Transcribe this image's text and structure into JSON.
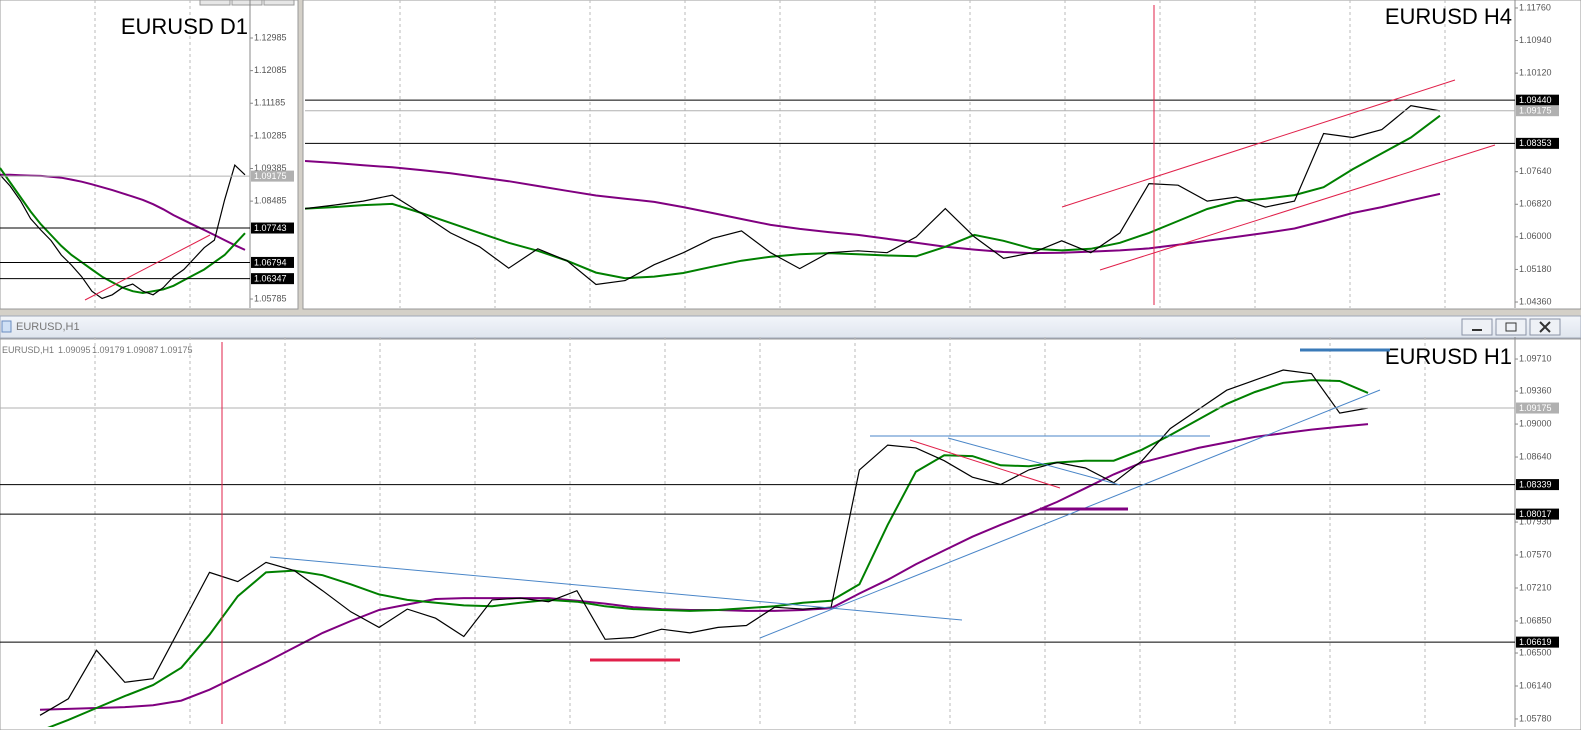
{
  "h1_window": {
    "title": "EURUSD,H1",
    "symbol": "EURUSD,H1",
    "ohlc": [
      1.09095,
      1.09179,
      1.09087,
      1.09175
    ]
  },
  "chart_data": [
    {
      "type": "line",
      "title": "EURUSD D1",
      "ylim": [
        1.0562,
        1.13895
      ],
      "yticks": [
        1.12985,
        1.12085,
        1.11185,
        1.10285,
        1.09385,
        1.08485,
        1.05785
      ],
      "hlines": [
        {
          "value": 1.09175,
          "color": "#b0b0b0"
        },
        {
          "value": 1.07743,
          "color": "#000000"
        },
        {
          "value": 1.06794,
          "color": "#000000"
        },
        {
          "value": 1.06347,
          "color": "#000000"
        }
      ],
      "series": [
        {
          "color": "#800080",
          "values": [
            1.0921,
            1.0921,
            1.092,
            1.0919,
            1.0918,
            1.0916,
            1.0913,
            1.0908,
            1.0902,
            1.0895,
            1.0887,
            1.0879,
            1.087,
            1.0861,
            1.0852,
            1.084,
            1.0826,
            1.081,
            1.0796,
            1.0782,
            1.0769,
            1.0755,
            1.0741,
            1.0727,
            1.0714
          ]
        },
        {
          "color": "#008000",
          "values": [
            1.094,
            1.09,
            1.086,
            1.082,
            1.0785,
            1.0755,
            1.0725,
            1.07,
            1.068,
            1.066,
            1.064,
            1.0625,
            1.061,
            1.06,
            1.0595,
            1.06,
            1.0605,
            1.0615,
            1.063,
            1.0645,
            1.066,
            1.068,
            1.07,
            1.073,
            1.076
          ]
        },
        {
          "color": "#000000",
          "values": [
            1.0921,
            1.089,
            1.085,
            1.08,
            1.0769,
            1.074,
            1.07,
            1.0672,
            1.064,
            1.06,
            1.058,
            1.059,
            1.061,
            1.062,
            1.06,
            1.059,
            1.061,
            1.064,
            1.066,
            1.069,
            1.072,
            1.0741,
            1.0852,
            1.0948,
            1.0921
          ]
        }
      ]
    },
    {
      "type": "line",
      "title": "EURUSD H4",
      "ylim": [
        1.04285,
        1.11835
      ],
      "yticks": [
        {
          "value": 1.1176,
          "label": "1.11760"
        },
        {
          "value": 1.1094,
          "label": "1.10940"
        },
        {
          "value": 1.1012,
          "label": "1.10120"
        },
        {
          "value": 1.0764,
          "label": "1.07640"
        },
        {
          "value": 1.0682,
          "label": "1.06820"
        },
        {
          "value": 1.06,
          "label": "1.06000"
        },
        {
          "value": 1.0518,
          "label": "1.05180"
        },
        {
          "value": 1.0436,
          "label": "1.04360"
        }
      ],
      "hlines": [
        {
          "value": 1.0944,
          "label": "1.09440",
          "color": "#000000"
        },
        {
          "value": 1.09175,
          "color": "#b0b0b0"
        },
        {
          "value": 1.08353,
          "color": "#000000"
        }
      ],
      "series": [
        {
          "color": "#800080",
          "values": [
            1.0791,
            1.0786,
            1.078,
            1.0775,
            1.0768,
            1.076,
            1.075,
            1.074,
            1.0728,
            1.0716,
            1.0704,
            1.0696,
            1.0688,
            1.0675,
            1.066,
            1.0645,
            1.063,
            1.062,
            1.0612,
            1.0605,
            1.0595,
            1.0585,
            1.0575,
            1.0568,
            1.0562,
            1.0559,
            1.056,
            1.0563,
            1.0566,
            1.0571,
            1.058,
            1.059,
            1.06,
            1.061,
            1.0621,
            1.064,
            1.066,
            1.0675,
            1.0692,
            1.0708
          ]
        },
        {
          "color": "#008000",
          "values": [
            1.0671,
            1.0675,
            1.068,
            1.0683,
            1.066,
            1.0635,
            1.061,
            1.0585,
            1.0565,
            1.054,
            1.051,
            1.0496,
            1.05,
            1.0509,
            1.0525,
            1.054,
            1.055,
            1.0556,
            1.0559,
            1.0556,
            1.0553,
            1.0551,
            1.0575,
            1.0605,
            1.059,
            1.057,
            1.0566,
            1.057,
            1.0585,
            1.061,
            1.064,
            1.067,
            1.069,
            1.0696,
            1.0705,
            1.0725,
            1.077,
            1.081,
            1.085,
            1.0905
          ]
        },
        {
          "color": "#000000",
          "values": [
            1.0671,
            1.068,
            1.069,
            1.0705,
            1.0659,
            1.061,
            1.0575,
            1.0521,
            1.057,
            1.054,
            1.048,
            1.049,
            1.053,
            1.056,
            1.0596,
            1.0615,
            1.056,
            1.052,
            1.056,
            1.0565,
            1.056,
            1.06,
            1.0671,
            1.06,
            1.0546,
            1.056,
            1.059,
            1.056,
            1.061,
            1.0734,
            1.073,
            1.069,
            1.07,
            1.0675,
            1.069,
            1.086,
            1.085,
            1.087,
            1.093,
            1.0917
          ]
        }
      ]
    },
    {
      "type": "line",
      "title": "EURUSD H1",
      "ylim": [
        1.05725,
        1.09896
      ],
      "yticks": [
        {
          "value": 1.0971,
          "label": "1.09710"
        },
        {
          "value": 1.0936,
          "label": "1.09360"
        },
        {
          "value": 1.09,
          "label": "1.09000"
        },
        {
          "value": 1.0864,
          "label": "1.08640"
        },
        {
          "value": 1.0793,
          "label": "1.07930"
        },
        {
          "value": 1.0757,
          "label": "1.07570"
        },
        {
          "value": 1.0721,
          "label": "1.07210"
        },
        {
          "value": 1.0685,
          "label": "1.06850"
        },
        {
          "value": 1.065,
          "label": "1.06500"
        },
        {
          "value": 1.0614,
          "label": "1.06140"
        },
        {
          "value": 1.0578,
          "label": "1.05780"
        }
      ],
      "hlines": [
        {
          "value": 1.09175,
          "color": "#b0b0b0"
        },
        {
          "value": 1.08339,
          "color": "#000000"
        },
        {
          "value": 1.08017,
          "color": "#000000"
        },
        {
          "value": 1.06619,
          "color": "#000000"
        }
      ],
      "series": [
        {
          "color": "#800080",
          "values": [
            1.0588,
            1.0589,
            1.059,
            1.0591,
            1.0593,
            1.0598,
            1.061,
            1.0625,
            1.064,
            1.0656,
            1.0672,
            1.0685,
            1.0697,
            1.0703,
            1.0709,
            1.071,
            1.071,
            1.071,
            1.071,
            1.0707,
            1.0704,
            1.07,
            1.0698,
            1.0697,
            1.0697,
            1.0696,
            1.0696,
            1.0697,
            1.0699,
            1.0715,
            1.073,
            1.0747,
            1.0762,
            1.0777,
            1.079,
            1.0802,
            1.0815,
            1.083,
            1.0845,
            1.0858,
            1.0866,
            1.0874,
            1.088,
            1.0886,
            1.089,
            1.0894,
            1.0897,
            1.09
          ]
        },
        {
          "color": "#008000",
          "values": [
            1.0565,
            1.0577,
            1.059,
            1.0603,
            1.0615,
            1.0634,
            1.067,
            1.0712,
            1.0738,
            1.074,
            1.0735,
            1.0725,
            1.0714,
            1.0708,
            1.0705,
            1.0702,
            1.0701,
            1.0705,
            1.0708,
            1.0706,
            1.0701,
            1.0698,
            1.0697,
            1.0696,
            1.0697,
            1.0699,
            1.0701,
            1.0705,
            1.0707,
            1.0725,
            1.079,
            1.0848,
            1.0866,
            1.0865,
            1.0855,
            1.0854,
            1.0858,
            1.086,
            1.086,
            1.0872,
            1.0888,
            1.0905,
            1.0922,
            1.0935,
            1.0945,
            1.0948,
            1.0947,
            1.0934
          ]
        },
        {
          "color": "#000000",
          "values": [
            1.0582,
            1.06,
            1.0653,
            1.0618,
            1.0622,
            1.068,
            1.0738,
            1.0728,
            1.0749,
            1.074,
            1.0718,
            1.0695,
            1.0678,
            1.0698,
            1.0688,
            1.0668,
            1.0708,
            1.071,
            1.0706,
            1.0718,
            1.0665,
            1.0667,
            1.0676,
            1.0672,
            1.0678,
            1.068,
            1.07,
            1.0698,
            1.07,
            1.085,
            1.0877,
            1.0874,
            1.086,
            1.0842,
            1.0834,
            1.085,
            1.0858,
            1.0852,
            1.0836,
            1.086,
            1.0895,
            1.0916,
            1.0937,
            1.0948,
            1.0959,
            1.0955,
            1.0912,
            1.09175
          ]
        }
      ]
    }
  ]
}
